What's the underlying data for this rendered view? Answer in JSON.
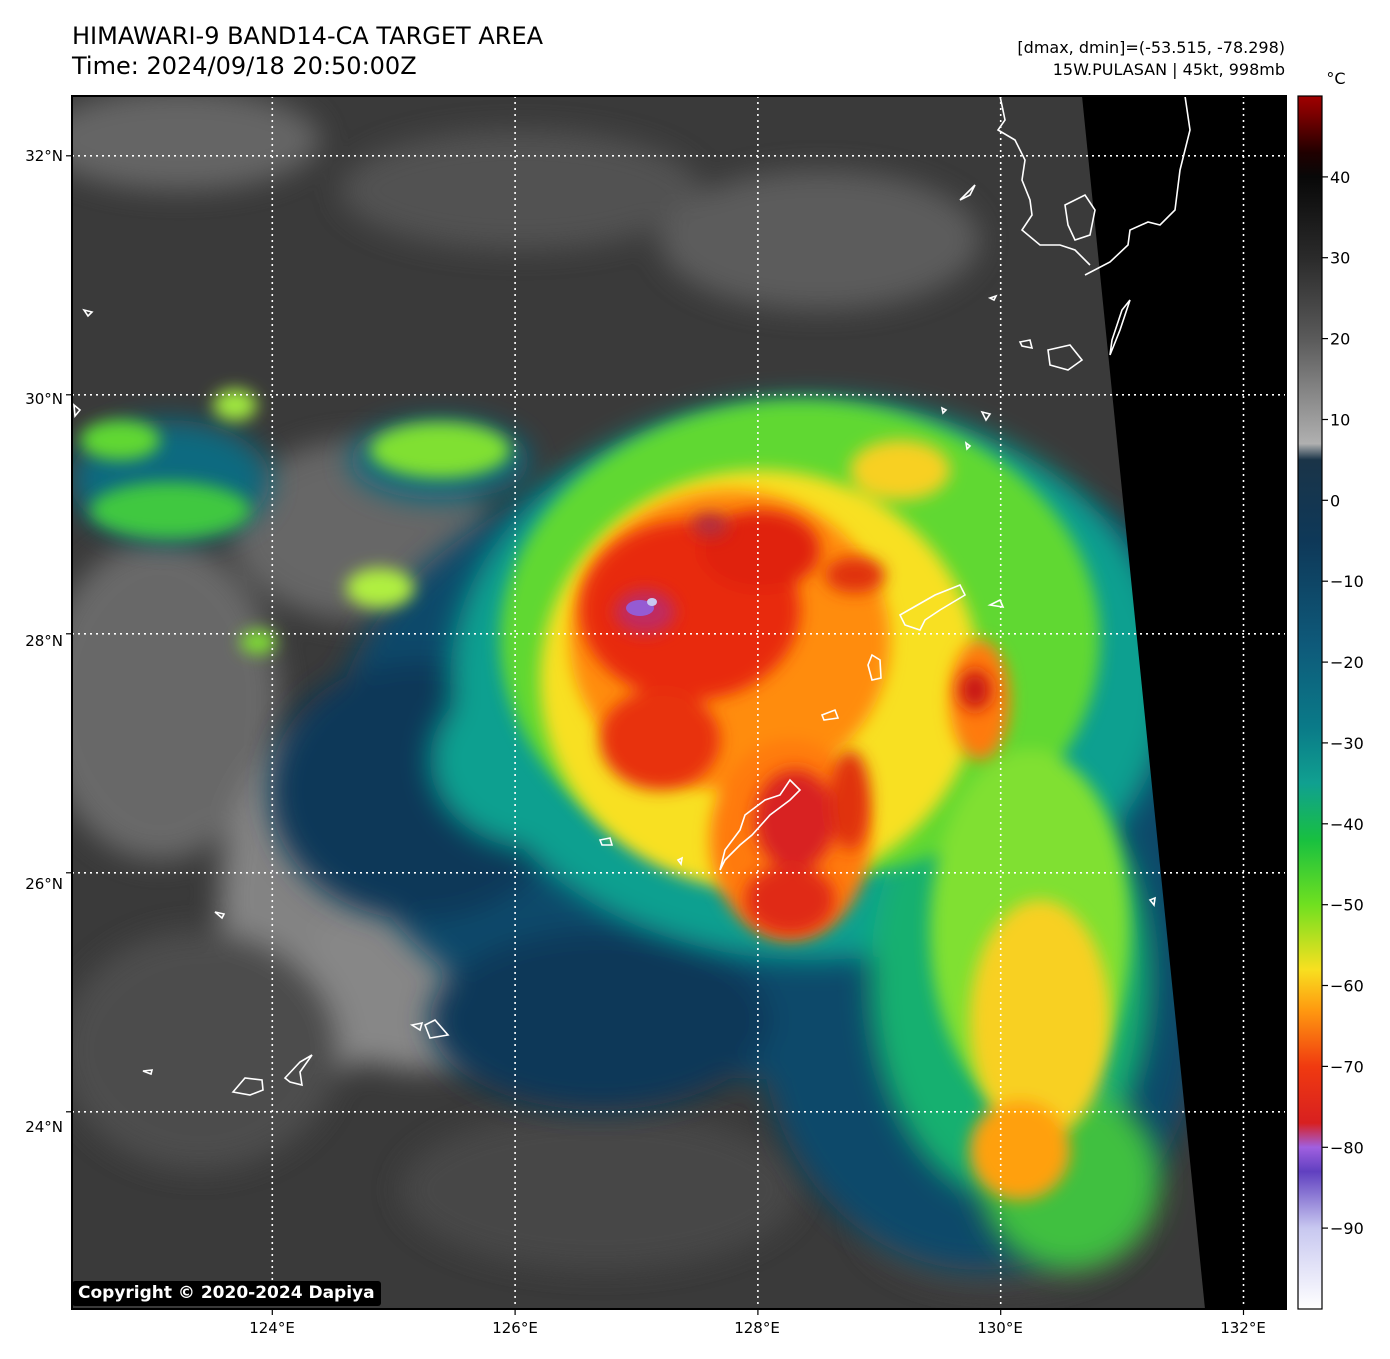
{
  "header": {
    "title": "HIMAWARI-9 BAND14-CA TARGET AREA",
    "time": "Time: 2024/09/18 20:50:00Z",
    "dmax_dmin": "[dmax, dmin]=(-53.515, -78.298)",
    "storm": "15W.PULASAN | 45kt, 998mb"
  },
  "map": {
    "lon_labels": [
      "124°E",
      "126°E",
      "128°E",
      "130°E",
      "132°E"
    ],
    "lat_labels": [
      "32°N",
      "30°N",
      "28°N",
      "26°N",
      "24°N"
    ],
    "lon_ticks": [
      124,
      126,
      128,
      130,
      132
    ],
    "lat_ticks": [
      32,
      30,
      28,
      26,
      24
    ]
  },
  "colorbar": {
    "unit": "°C",
    "tick_values": [
      40,
      30,
      20,
      10,
      0,
      -10,
      -20,
      -30,
      -40,
      -50,
      -60,
      -70,
      -80,
      -90
    ],
    "tick_labels": [
      "40",
      "30",
      "20",
      "10",
      "0",
      "−10",
      "−20",
      "−30",
      "−40",
      "−50",
      "−60",
      "−70",
      "−80",
      "−90"
    ],
    "range": [
      -100,
      50
    ],
    "stops": [
      {
        "t": -100,
        "c": "#ffffff"
      },
      {
        "t": -90,
        "c": "#c8c8f0"
      },
      {
        "t": -83,
        "c": "#6040c0"
      },
      {
        "t": -80,
        "c": "#a060e0"
      },
      {
        "t": -77,
        "c": "#d82020"
      },
      {
        "t": -70,
        "c": "#f03a10"
      },
      {
        "t": -63,
        "c": "#ff9a10"
      },
      {
        "t": -58,
        "c": "#f8e020"
      },
      {
        "t": -50,
        "c": "#70e020"
      },
      {
        "t": -42,
        "c": "#18c040"
      },
      {
        "t": -35,
        "c": "#10a090"
      },
      {
        "t": -28,
        "c": "#0a7a88"
      },
      {
        "t": -18,
        "c": "#0e5a7a"
      },
      {
        "t": -5,
        "c": "#0e3858"
      },
      {
        "t": 5,
        "c": "#1a3448"
      },
      {
        "t": 7,
        "c": "#b0b0b0"
      },
      {
        "t": 20,
        "c": "#5a5a5a"
      },
      {
        "t": 30,
        "c": "#2a2a2a"
      },
      {
        "t": 40,
        "c": "#080808"
      },
      {
        "t": 43,
        "c": "#200000"
      },
      {
        "t": 48,
        "c": "#800000"
      },
      {
        "t": 50,
        "c": "#a00000"
      }
    ]
  },
  "copyright": "Copyright © 2020-2024 Dapiya"
}
